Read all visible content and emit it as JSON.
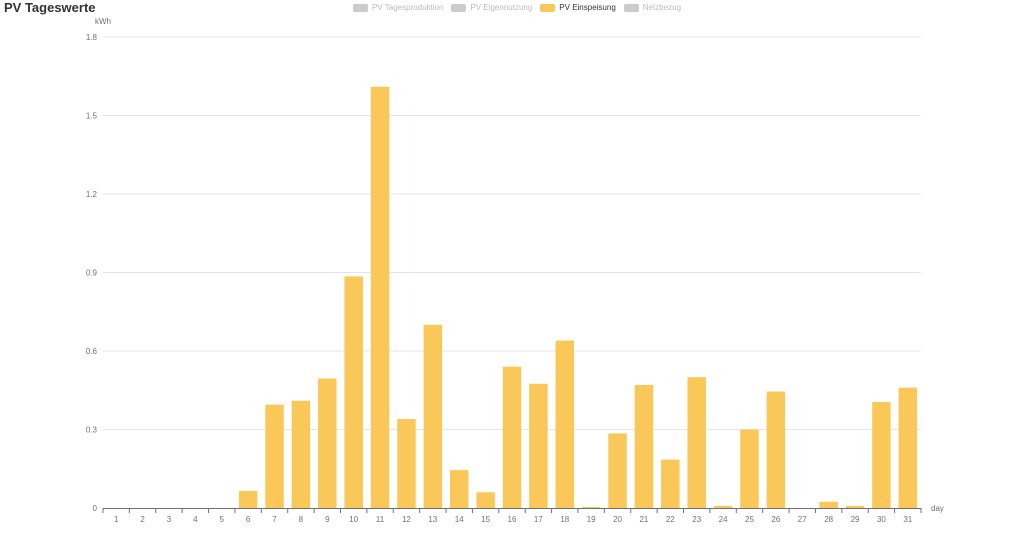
{
  "page": {
    "title": "PV Tageswerte"
  },
  "legend": [
    {
      "label": "PV Tagesproduktion",
      "color": "#cccccc",
      "active": false
    },
    {
      "label": "PV Eigennutzung",
      "color": "#cccccc",
      "active": false
    },
    {
      "label": "PV Einspeisung",
      "color": "#fac858",
      "active": true
    },
    {
      "label": "Netzbezug",
      "color": "#cccccc",
      "active": false
    }
  ],
  "chart_data": {
    "type": "bar",
    "title": "PV Tageswerte",
    "xlabel": "day",
    "ylabel": "kWh",
    "ylim": [
      0,
      1.8
    ],
    "yticks": [
      "0",
      "0.3",
      "0.6",
      "0.9",
      "1.2",
      "1.5",
      "1.8"
    ],
    "categories": [
      "1",
      "2",
      "3",
      "4",
      "5",
      "6",
      "7",
      "8",
      "9",
      "10",
      "11",
      "12",
      "13",
      "14",
      "15",
      "16",
      "17",
      "18",
      "19",
      "20",
      "21",
      "22",
      "23",
      "24",
      "25",
      "26",
      "27",
      "28",
      "29",
      "30",
      "31"
    ],
    "series": [
      {
        "name": "PV Einspeisung",
        "color": "#fac858",
        "values": [
          0,
          0,
          0,
          0,
          0,
          0.065,
          0.395,
          0.41,
          0.495,
          0.885,
          1.61,
          0.34,
          0.7,
          0.145,
          0.06,
          0.54,
          0.475,
          0.64,
          0.003,
          0.285,
          0.47,
          0.185,
          0.5,
          0.008,
          0.3,
          0.445,
          0,
          0.024,
          0.008,
          0.405,
          0.46
        ]
      }
    ],
    "grid": true,
    "legend_position": "top-center"
  }
}
